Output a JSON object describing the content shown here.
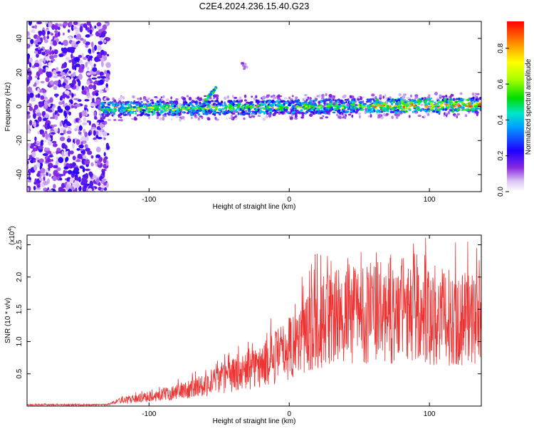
{
  "chart_data": [
    {
      "type": "heatmap",
      "title": "C2E4.2024.236.15.40.G23",
      "xlabel": "Height of straight line (km)",
      "ylabel": "Frequency (Hz)",
      "xlim": [
        -187,
        137
      ],
      "ylim": [
        -50,
        50
      ],
      "xticks": [
        -100,
        0,
        100
      ],
      "yticks": [
        40,
        20,
        0,
        -20,
        -40
      ],
      "ytick_labels": [
        "40",
        "20",
        "0",
        "-20",
        "-40"
      ],
      "grid": false,
      "colorbar": {
        "label": "Normalized spectral amplitude",
        "range": [
          0,
          0.95
        ],
        "ticks": [
          0.0,
          0.2,
          0.4,
          0.6,
          0.8
        ],
        "tick_labels": [
          "0.0",
          "0.2",
          "0.4",
          "0.6",
          "0.8"
        ]
      },
      "features": {
        "noise_region_x": [
          -187,
          -135
        ],
        "main_band_x": [
          -135,
          137
        ],
        "main_band_frequency_hz": [
          -2,
          1
        ],
        "branch": {
          "x": [
            -60,
            -52
          ],
          "frequency_hz": [
            4,
            11
          ]
        },
        "isolated_blob": {
          "x": -32,
          "frequency_hz": 24
        }
      }
    },
    {
      "type": "line",
      "title": "",
      "xlabel": "Height of straight line (km)",
      "ylabel": "SNR (10 * v/v)",
      "scale_label": "(x10",
      "scale_exponent": "4",
      "xlim": [
        -187,
        137
      ],
      "ylim": [
        0,
        2.65
      ],
      "xticks": [
        -100,
        0,
        100
      ],
      "yticks": [
        0.5,
        1.0,
        1.5,
        2.0,
        2.5
      ],
      "ytick_labels": [
        "0.5",
        "1.0",
        "1.5",
        "2.0",
        "2.5"
      ],
      "series_color": "#ee3333",
      "trend": {
        "x": [
          -187,
          -130,
          -120,
          -100,
          -80,
          -60,
          -40,
          -20,
          0,
          20,
          40,
          60,
          80,
          100,
          120,
          137
        ],
        "y": [
          0.02,
          0.02,
          0.09,
          0.14,
          0.22,
          0.33,
          0.48,
          0.62,
          0.9,
          1.28,
          1.42,
          1.45,
          1.42,
          1.38,
          1.37,
          1.35
        ]
      }
    }
  ]
}
